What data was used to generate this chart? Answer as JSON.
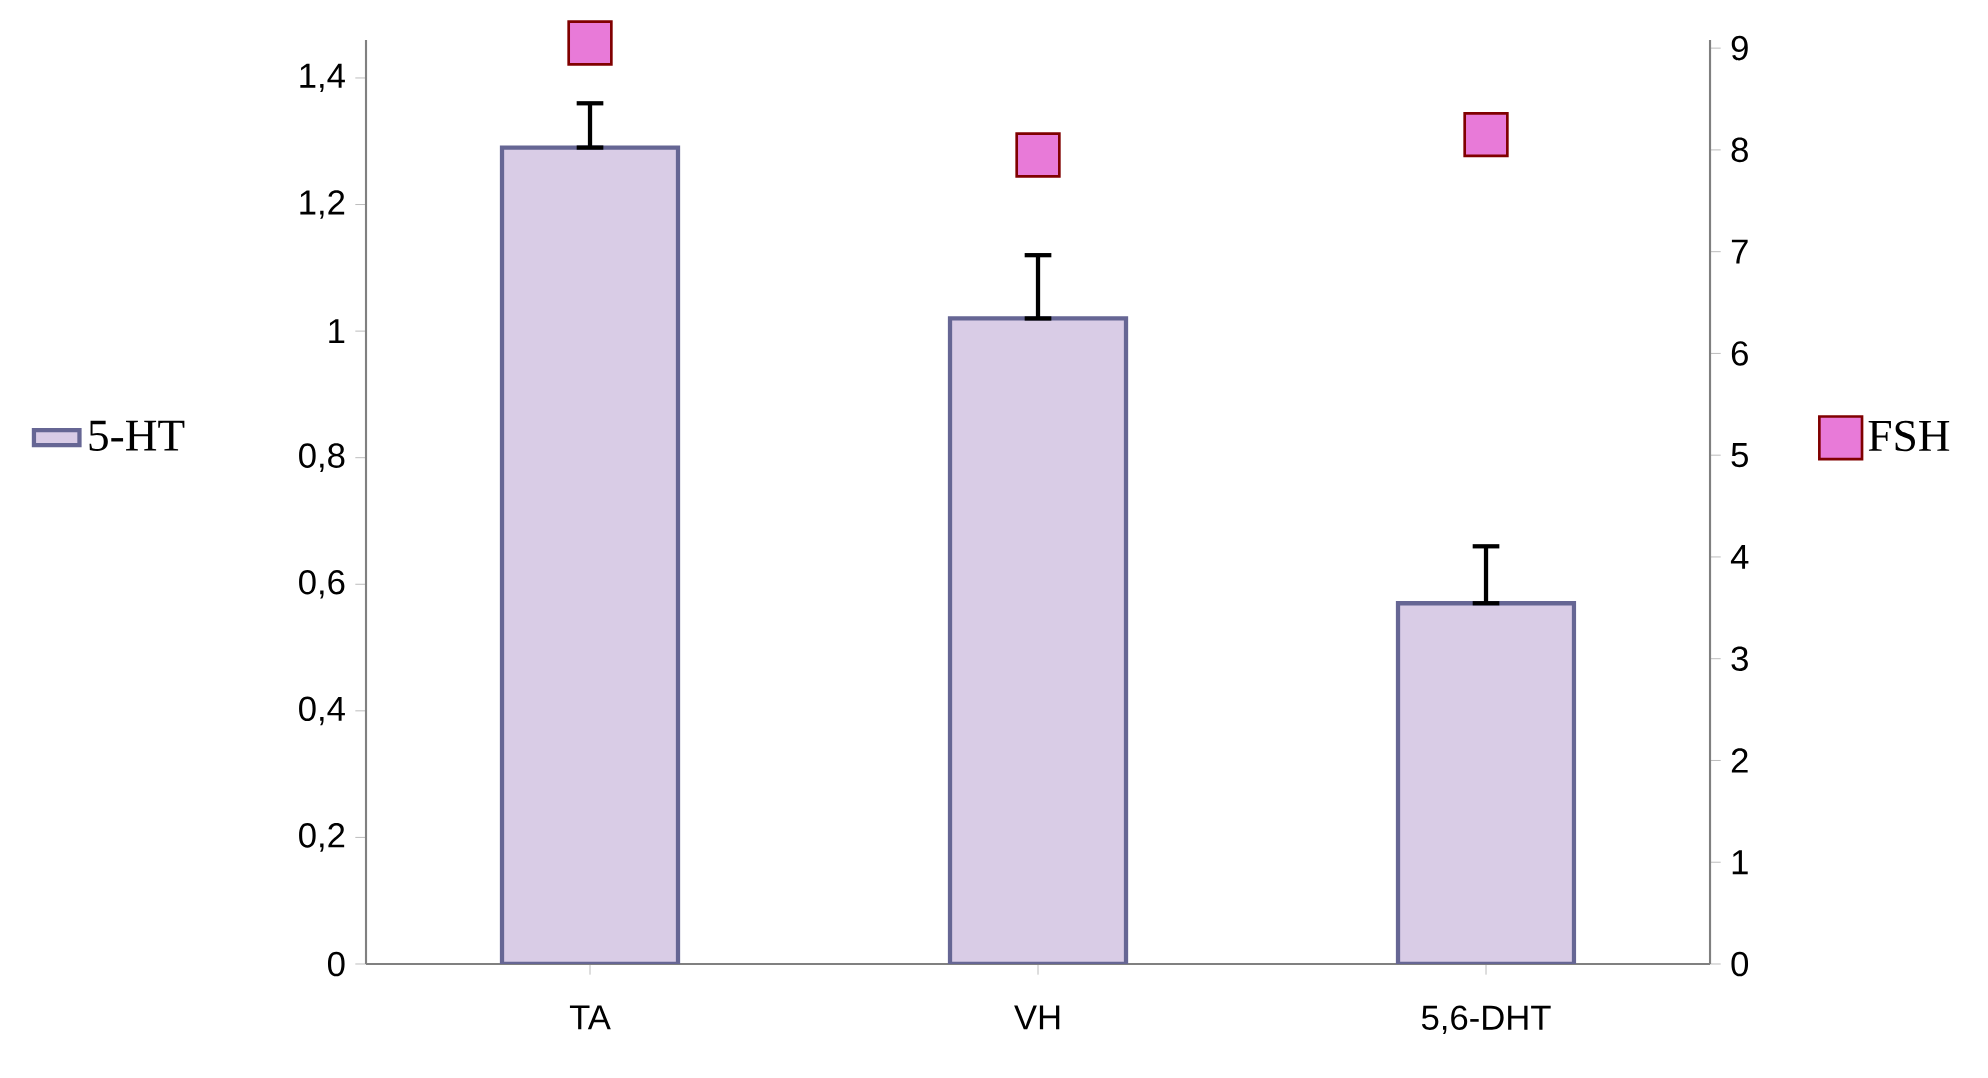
{
  "chart_data": {
    "type": "bar",
    "categories": [
      "TA",
      "VH",
      "5,6-DHT"
    ],
    "series": [
      {
        "name": "5-HT",
        "color": "#d9cce6",
        "values": [
          1.29,
          1.02,
          0.57
        ],
        "errors": [
          [
            1.29,
            1.36
          ],
          [
            1.02,
            1.12
          ],
          [
            0.57,
            0.66
          ]
        ]
      },
      {
        "name": "FSH",
        "type": "scatter",
        "axis": "y2",
        "color": "#e87ad8",
        "values": [
          9.05,
          7.95,
          8.15
        ]
      }
    ],
    "ylim": [
      0,
      1.46
    ],
    "yticks": [
      {
        "value": 0,
        "label": "0"
      },
      {
        "value": 0.2,
        "label": "0,2"
      },
      {
        "value": 0.4,
        "label": "0,4"
      },
      {
        "value": 0.6,
        "label": "0,6"
      },
      {
        "value": 0.8,
        "label": "0,8"
      },
      {
        "value": 1,
        "label": "1"
      },
      {
        "value": 1.2,
        "label": "1,2"
      },
      {
        "value": 1.4,
        "label": "1,4"
      }
    ],
    "y2lim": [
      0,
      9.08
    ],
    "y2ticks": [
      0,
      1,
      2,
      3,
      4,
      5,
      6,
      7,
      8,
      9
    ],
    "marker": "square",
    "legend": "left",
    "grid": false
  }
}
